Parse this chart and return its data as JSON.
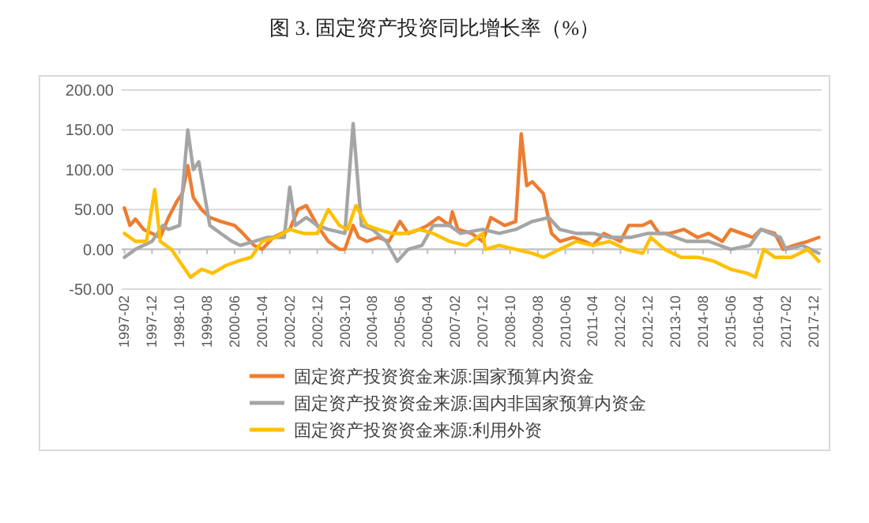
{
  "chart_data": {
    "type": "line",
    "title": "图 3. 固定资产投资同比增长率（%）",
    "xlim": [
      "1997-01",
      "2018-03"
    ],
    "ylim": [
      -50,
      200
    ],
    "yticks": [
      {
        "value": -50,
        "label": "-50.00"
      },
      {
        "value": 0,
        "label": "0.00"
      },
      {
        "value": 50,
        "label": "50.00"
      },
      {
        "value": 100,
        "label": "100.00"
      },
      {
        "value": 150,
        "label": "150.00"
      },
      {
        "value": 200,
        "label": "200.00"
      }
    ],
    "xticks": [
      "1997-02",
      "1997-12",
      "1998-10",
      "1999-08",
      "2000-06",
      "2001-04",
      "2002-02",
      "2002-12",
      "2003-10",
      "2004-08",
      "2005-06",
      "2006-04",
      "2007-02",
      "2007-12",
      "2008-10",
      "2009-08",
      "2010-06",
      "2011-04",
      "2012-02",
      "2012-12",
      "2013-10",
      "2014-08",
      "2015-06",
      "2016-04",
      "2017-02",
      "2017-12"
    ],
    "grid": "y",
    "legend": "bottom",
    "line_style": "solid",
    "series": [
      {
        "name": "固定资产投资资金来源:国家预算内资金",
        "color": "#ed7d31",
        "x": [
          "1997-02",
          "1997-04",
          "1997-06",
          "1997-09",
          "1997-12",
          "1998-03",
          "1998-06",
          "1998-09",
          "1998-11",
          "1999-01",
          "1999-03",
          "1999-06",
          "1999-09",
          "2000-01",
          "2000-06",
          "2000-09",
          "2001-01",
          "2001-04",
          "2001-08",
          "2002-02",
          "2002-05",
          "2002-08",
          "2002-12",
          "2003-04",
          "2003-08",
          "2003-10",
          "2004-01",
          "2004-03",
          "2004-06",
          "2004-10",
          "2005-02",
          "2005-06",
          "2005-09",
          "2006-01",
          "2006-04",
          "2006-08",
          "2006-12",
          "2007-01",
          "2007-03",
          "2007-08",
          "2007-12",
          "2008-03",
          "2008-08",
          "2008-12",
          "2009-02",
          "2009-04",
          "2009-06",
          "2009-10",
          "2010-01",
          "2010-04",
          "2010-09",
          "2011-01",
          "2011-04",
          "2011-08",
          "2012-02",
          "2012-05",
          "2012-10",
          "2013-01",
          "2013-04",
          "2013-08",
          "2014-01",
          "2014-06",
          "2014-10",
          "2015-03",
          "2015-06",
          "2015-10",
          "2016-02",
          "2016-05",
          "2016-10",
          "2017-01",
          "2017-05",
          "2017-10",
          "2018-02"
        ],
        "values": [
          52,
          30,
          38,
          25,
          20,
          15,
          40,
          60,
          70,
          105,
          65,
          50,
          40,
          35,
          30,
          20,
          5,
          0,
          15,
          25,
          50,
          55,
          30,
          10,
          0,
          0,
          30,
          15,
          10,
          15,
          10,
          35,
          20,
          25,
          30,
          40,
          30,
          47,
          25,
          20,
          10,
          40,
          30,
          35,
          145,
          80,
          85,
          70,
          20,
          10,
          15,
          10,
          5,
          20,
          10,
          30,
          30,
          35,
          20,
          20,
          25,
          15,
          20,
          10,
          25,
          20,
          15,
          25,
          20,
          0,
          5,
          10,
          15
        ]
      },
      {
        "name": "固定资产投资资金来源:国内非国家预算内资金",
        "color": "#a5a5a5",
        "x": [
          "1997-02",
          "1997-06",
          "1997-12",
          "1998-04",
          "1998-06",
          "1998-10",
          "1999-01",
          "1999-03",
          "1999-05",
          "1999-09",
          "2000-01",
          "2000-05",
          "2000-08",
          "2001-01",
          "2001-06",
          "2001-12",
          "2002-02",
          "2002-04",
          "2002-08",
          "2002-12",
          "2003-04",
          "2003-10",
          "2004-01",
          "2004-04",
          "2004-08",
          "2005-01",
          "2005-05",
          "2005-09",
          "2006-02",
          "2006-06",
          "2006-12",
          "2007-04",
          "2007-12",
          "2008-06",
          "2008-12",
          "2009-06",
          "2009-12",
          "2010-04",
          "2010-10",
          "2011-04",
          "2011-10",
          "2012-06",
          "2012-12",
          "2013-06",
          "2014-02",
          "2014-10",
          "2015-06",
          "2016-01",
          "2016-05",
          "2016-12",
          "2017-02",
          "2017-08",
          "2018-02"
        ],
        "values": [
          -10,
          0,
          10,
          30,
          25,
          30,
          150,
          100,
          110,
          30,
          20,
          10,
          5,
          10,
          15,
          15,
          78,
          30,
          40,
          30,
          25,
          20,
          158,
          30,
          25,
          10,
          -15,
          0,
          5,
          30,
          30,
          20,
          25,
          20,
          25,
          35,
          40,
          25,
          20,
          20,
          15,
          15,
          20,
          20,
          10,
          10,
          0,
          5,
          25,
          15,
          0,
          5,
          -5
        ]
      },
      {
        "name": "固定资产投资资金来源:利用外资",
        "color": "#ffc000",
        "x": [
          "1997-02",
          "1997-06",
          "1997-10",
          "1998-01",
          "1998-03",
          "1998-07",
          "1998-11",
          "1999-02",
          "1999-06",
          "1999-10",
          "2000-03",
          "2000-07",
          "2000-12",
          "2001-04",
          "2001-09",
          "2002-02",
          "2002-07",
          "2002-12",
          "2003-04",
          "2003-08",
          "2003-11",
          "2004-02",
          "2004-06",
          "2004-10",
          "2005-03",
          "2005-08",
          "2006-01",
          "2006-06",
          "2006-12",
          "2007-06",
          "2007-12",
          "2008-01",
          "2008-06",
          "2008-12",
          "2009-06",
          "2009-10",
          "2010-04",
          "2010-10",
          "2011-04",
          "2011-10",
          "2012-04",
          "2012-10",
          "2013-01",
          "2013-06",
          "2013-12",
          "2014-06",
          "2014-12",
          "2015-06",
          "2015-12",
          "2016-03",
          "2016-06",
          "2016-10",
          "2017-04",
          "2017-10",
          "2018-02"
        ],
        "values": [
          20,
          10,
          10,
          75,
          10,
          0,
          -20,
          -35,
          -25,
          -30,
          -20,
          -15,
          -10,
          10,
          15,
          25,
          20,
          20,
          50,
          30,
          25,
          55,
          30,
          25,
          20,
          20,
          25,
          20,
          10,
          5,
          20,
          0,
          5,
          0,
          -5,
          -10,
          0,
          10,
          5,
          10,
          0,
          -5,
          15,
          0,
          -10,
          -10,
          -15,
          -25,
          -30,
          -35,
          0,
          -10,
          -10,
          0,
          -15
        ]
      }
    ]
  }
}
